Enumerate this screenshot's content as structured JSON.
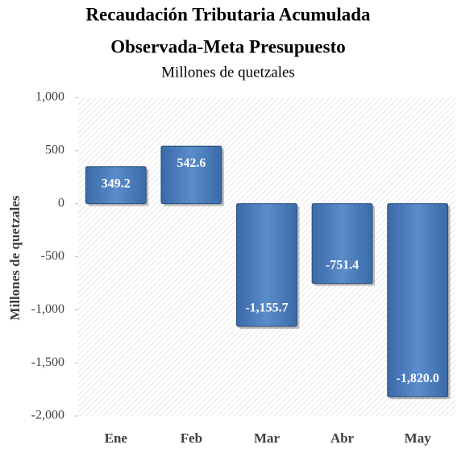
{
  "chart_data": {
    "type": "bar",
    "title": [
      "Recaudación Tributaria Acumulada",
      "Observada-Meta Presupuesto"
    ],
    "subtitle": "Millones de quetzales",
    "y_label": "Millones de quetzales",
    "categories": [
      "Ene",
      "Feb",
      "Mar",
      "Abr",
      "May"
    ],
    "values": [
      349.2,
      542.6,
      -1155.7,
      -751.4,
      -1820.0
    ],
    "value_labels": [
      "349.2",
      "542.6",
      "-1,155.7",
      "-751.4",
      "-1,820.0"
    ],
    "color": "#4f81bd",
    "ylim": [
      -2000,
      1000
    ],
    "yticks": [
      {
        "value": -2000,
        "label": "-2,000"
      },
      {
        "value": -1500,
        "label": "-1,500"
      },
      {
        "value": -1000,
        "label": "-1,000"
      },
      -500,
      0,
      500,
      {
        "value": 1000,
        "label": "1,000"
      }
    ],
    "grid": false
  }
}
